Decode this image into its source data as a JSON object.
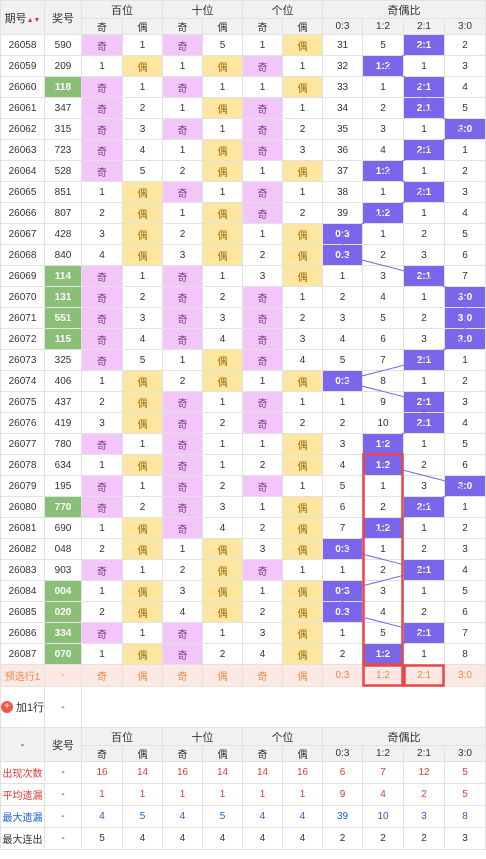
{
  "header": {
    "period": "期号",
    "sort": "▲▼",
    "prize": "奖号",
    "groups": [
      "百位",
      "十位",
      "个位",
      "奇偶比"
    ],
    "sub": [
      "奇",
      "偶",
      "奇",
      "偶",
      "奇",
      "偶",
      "0:3",
      "1:2",
      "2:1",
      "3:0"
    ]
  },
  "rows": [
    {
      "p": "26058",
      "n": "590",
      "h": [
        "奇",
        "1"
      ],
      "t": [
        "奇",
        "5"
      ],
      "u": [
        "1",
        "偶"
      ],
      "r": [
        "31",
        "5",
        "2:1",
        "2"
      ],
      "rc": 2
    },
    {
      "p": "26059",
      "n": "209",
      "h": [
        "1",
        "偶"
      ],
      "t": [
        "1",
        "偶"
      ],
      "u": [
        "奇",
        "1"
      ],
      "r": [
        "32",
        "1:2",
        "1",
        "3"
      ],
      "rc": 1
    },
    {
      "p": "26060",
      "n": "118",
      "hl": true,
      "h": [
        "奇",
        "1"
      ],
      "t": [
        "奇",
        "1"
      ],
      "u": [
        "1",
        "偶"
      ],
      "r": [
        "33",
        "1",
        "2:1",
        "4"
      ],
      "rc": 2
    },
    {
      "p": "26061",
      "n": "347",
      "h": [
        "奇",
        "2"
      ],
      "t": [
        "1",
        "偶"
      ],
      "u": [
        "奇",
        "1"
      ],
      "r": [
        "34",
        "2",
        "2:1",
        "5"
      ],
      "rc": 2
    },
    {
      "p": "26062",
      "n": "315",
      "h": [
        "奇",
        "3"
      ],
      "t": [
        "奇",
        "1"
      ],
      "u": [
        "奇",
        "2"
      ],
      "r": [
        "35",
        "3",
        "1",
        "3:0"
      ],
      "rc": 3
    },
    {
      "p": "26063",
      "n": "723",
      "h": [
        "奇",
        "4"
      ],
      "t": [
        "1",
        "偶"
      ],
      "u": [
        "奇",
        "3"
      ],
      "r": [
        "36",
        "4",
        "2:1",
        "1"
      ],
      "rc": 2
    },
    {
      "p": "26064",
      "n": "528",
      "h": [
        "奇",
        "5"
      ],
      "t": [
        "2",
        "偶"
      ],
      "u": [
        "1",
        "偶"
      ],
      "r": [
        "37",
        "1:2",
        "1",
        "2"
      ],
      "rc": 1
    },
    {
      "p": "26065",
      "n": "851",
      "h": [
        "1",
        "偶"
      ],
      "t": [
        "奇",
        "1"
      ],
      "u": [
        "奇",
        "1"
      ],
      "r": [
        "38",
        "1",
        "2:1",
        "3"
      ],
      "rc": 2
    },
    {
      "p": "26066",
      "n": "807",
      "h": [
        "2",
        "偶"
      ],
      "t": [
        "1",
        "偶"
      ],
      "u": [
        "奇",
        "2"
      ],
      "r": [
        "39",
        "1:2",
        "1",
        "4"
      ],
      "rc": 1
    },
    {
      "p": "26067",
      "n": "428",
      "h": [
        "3",
        "偶"
      ],
      "t": [
        "2",
        "偶"
      ],
      "u": [
        "1",
        "偶"
      ],
      "r": [
        "0:3",
        "1",
        "2",
        "5"
      ],
      "rc": 0
    },
    {
      "p": "26068",
      "n": "840",
      "h": [
        "4",
        "偶"
      ],
      "t": [
        "3",
        "偶"
      ],
      "u": [
        "2",
        "偶"
      ],
      "r": [
        "0:3",
        "2",
        "3",
        "6"
      ],
      "rc": 0
    },
    {
      "p": "26069",
      "n": "114",
      "hl": true,
      "h": [
        "奇",
        "1"
      ],
      "t": [
        "奇",
        "1"
      ],
      "u": [
        "3",
        "偶"
      ],
      "r": [
        "1",
        "3",
        "2:1",
        "7"
      ],
      "rc": 2
    },
    {
      "p": "26070",
      "n": "131",
      "hl": true,
      "h": [
        "奇",
        "2"
      ],
      "t": [
        "奇",
        "2"
      ],
      "u": [
        "奇",
        "1"
      ],
      "r": [
        "2",
        "4",
        "1",
        "3:0"
      ],
      "rc": 3
    },
    {
      "p": "26071",
      "n": "551",
      "hl": true,
      "h": [
        "奇",
        "3"
      ],
      "t": [
        "奇",
        "3"
      ],
      "u": [
        "奇",
        "2"
      ],
      "r": [
        "3",
        "5",
        "2",
        "3:0"
      ],
      "rc": 3
    },
    {
      "p": "26072",
      "n": "115",
      "hl": true,
      "h": [
        "奇",
        "4"
      ],
      "t": [
        "奇",
        "4"
      ],
      "u": [
        "奇",
        "3"
      ],
      "r": [
        "4",
        "6",
        "3",
        "3:0"
      ],
      "rc": 3
    },
    {
      "p": "26073",
      "n": "325",
      "h": [
        "奇",
        "5"
      ],
      "t": [
        "1",
        "偶"
      ],
      "u": [
        "奇",
        "4"
      ],
      "r": [
        "5",
        "7",
        "2:1",
        "1"
      ],
      "rc": 2
    },
    {
      "p": "26074",
      "n": "406",
      "h": [
        "1",
        "偶"
      ],
      "t": [
        "2",
        "偶"
      ],
      "u": [
        "1",
        "偶"
      ],
      "r": [
        "0:3",
        "8",
        "1",
        "2"
      ],
      "rc": 0
    },
    {
      "p": "26075",
      "n": "437",
      "h": [
        "2",
        "偶"
      ],
      "t": [
        "奇",
        "1"
      ],
      "u": [
        "奇",
        "1"
      ],
      "r": [
        "1",
        "9",
        "2:1",
        "3"
      ],
      "rc": 2
    },
    {
      "p": "26076",
      "n": "419",
      "h": [
        "3",
        "偶"
      ],
      "t": [
        "奇",
        "2"
      ],
      "u": [
        "奇",
        "2"
      ],
      "r": [
        "2",
        "10",
        "2:1",
        "4"
      ],
      "rc": 2
    },
    {
      "p": "26077",
      "n": "780",
      "h": [
        "奇",
        "1"
      ],
      "t": [
        "奇",
        "1"
      ],
      "u": [
        "1",
        "偶"
      ],
      "r": [
        "3",
        "1:2",
        "1",
        "5"
      ],
      "rc": 1
    },
    {
      "p": "26078",
      "n": "634",
      "h": [
        "1",
        "偶"
      ],
      "t": [
        "奇",
        "1"
      ],
      "u": [
        "2",
        "偶"
      ],
      "r": [
        "4",
        "1:2",
        "2",
        "6"
      ],
      "rc": 1
    },
    {
      "p": "26079",
      "n": "195",
      "h": [
        "奇",
        "1"
      ],
      "t": [
        "奇",
        "2"
      ],
      "u": [
        "奇",
        "1"
      ],
      "r": [
        "5",
        "1",
        "3",
        "3:0"
      ],
      "rc": 3
    },
    {
      "p": "26080",
      "n": "770",
      "hl": true,
      "h": [
        "奇",
        "2"
      ],
      "t": [
        "奇",
        "3"
      ],
      "u": [
        "1",
        "偶"
      ],
      "r": [
        "6",
        "2",
        "2:1",
        "1"
      ],
      "rc": 2
    },
    {
      "p": "26081",
      "n": "690",
      "h": [
        "1",
        "偶"
      ],
      "t": [
        "奇",
        "4"
      ],
      "u": [
        "2",
        "偶"
      ],
      "r": [
        "7",
        "1:2",
        "1",
        "2"
      ],
      "rc": 1
    },
    {
      "p": "26082",
      "n": "048",
      "h": [
        "2",
        "偶"
      ],
      "t": [
        "1",
        "偶"
      ],
      "u": [
        "3",
        "偶"
      ],
      "r": [
        "0:3",
        "1",
        "2",
        "3"
      ],
      "rc": 0
    },
    {
      "p": "26083",
      "n": "903",
      "h": [
        "奇",
        "1"
      ],
      "t": [
        "2",
        "偶"
      ],
      "u": [
        "奇",
        "1"
      ],
      "r": [
        "1",
        "2",
        "2:1",
        "4"
      ],
      "rc": 2
    },
    {
      "p": "26084",
      "n": "004",
      "hl": true,
      "h": [
        "1",
        "偶"
      ],
      "t": [
        "3",
        "偶"
      ],
      "u": [
        "1",
        "偶"
      ],
      "r": [
        "0:3",
        "3",
        "1",
        "5"
      ],
      "rc": 0
    },
    {
      "p": "26085",
      "n": "020",
      "hl": true,
      "h": [
        "2",
        "偶"
      ],
      "t": [
        "4",
        "偶"
      ],
      "u": [
        "2",
        "偶"
      ],
      "r": [
        "0:3",
        "4",
        "2",
        "6"
      ],
      "rc": 0
    },
    {
      "p": "26086",
      "n": "334",
      "hl": true,
      "h": [
        "奇",
        "1"
      ],
      "t": [
        "奇",
        "1"
      ],
      "u": [
        "3",
        "偶"
      ],
      "r": [
        "1",
        "5",
        "2:1",
        "7"
      ],
      "rc": 2
    },
    {
      "p": "26087",
      "n": "070",
      "hl": true,
      "h": [
        "1",
        "偶"
      ],
      "t": [
        "奇",
        "2"
      ],
      "u": [
        "4",
        "偶"
      ],
      "r": [
        "2",
        "1:2",
        "1",
        "8"
      ],
      "rc": 1
    }
  ],
  "predict": {
    "label": "预选行1",
    "dash": "-",
    "cells": [
      "奇",
      "偶",
      "奇",
      "偶",
      "奇",
      "偶",
      "0:3",
      "1:2",
      "2:1",
      "3:0"
    ]
  },
  "add_row": {
    "label": "加1行",
    "plus": "+",
    "dash": "-"
  },
  "stats": [
    {
      "label": "出现次数",
      "cls": "red",
      "v": [
        "16",
        "14",
        "16",
        "14",
        "14",
        "16",
        "6",
        "7",
        "12",
        "5"
      ]
    },
    {
      "label": "平均遗漏",
      "cls": "red",
      "v": [
        "1",
        "1",
        "1",
        "1",
        "1",
        "1",
        "9",
        "4",
        "2",
        "5"
      ]
    },
    {
      "label": "最大遗漏",
      "cls": "blue",
      "v": [
        "4",
        "5",
        "4",
        "5",
        "4",
        "4",
        "39",
        "10",
        "3",
        "8"
      ]
    },
    {
      "label": "最大连出",
      "cls": "",
      "v": [
        "5",
        "4",
        "4",
        "4",
        "4",
        "4",
        "2",
        "2",
        "2",
        "3"
      ]
    }
  ],
  "colors": {
    "odd": "#f2c6f8",
    "even": "#fde6a0",
    "ratio": "#7a66ea",
    "prize": "#8bbf78",
    "highlight_box": "#e8474a"
  }
}
